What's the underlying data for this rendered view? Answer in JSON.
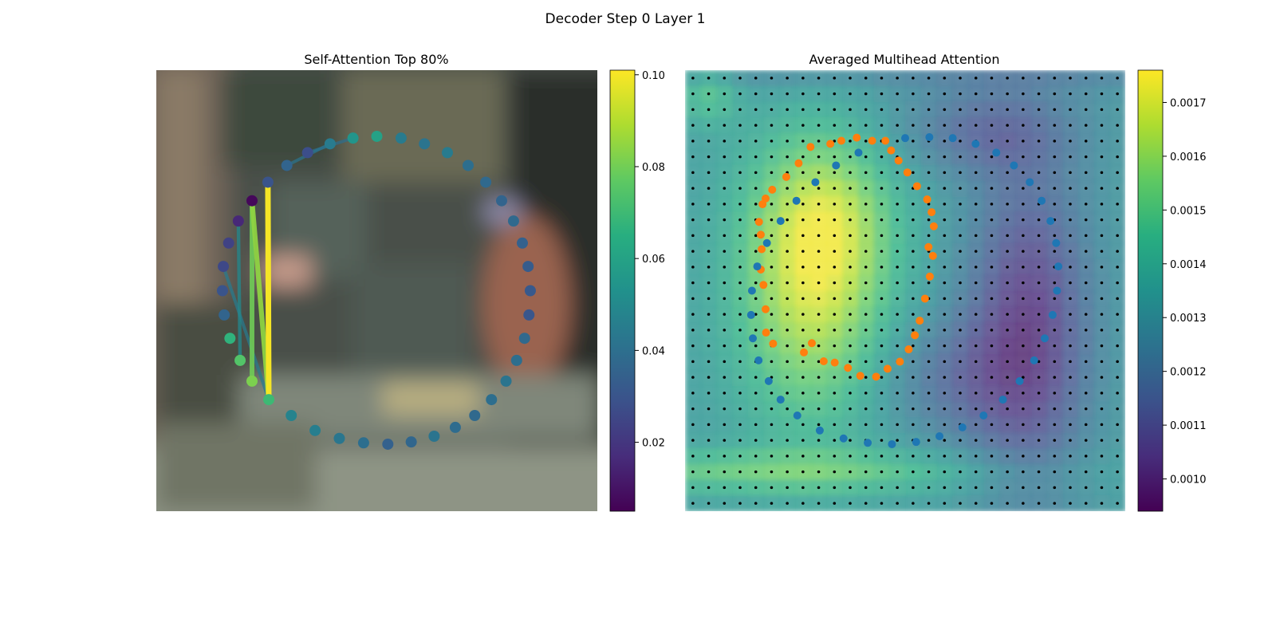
{
  "figure": {
    "suptitle": "Decoder Step 0 Layer 1"
  },
  "chart_data": [
    {
      "type": "scatter",
      "title": "Self-Attention Top 80%",
      "background": "blurred street-scene photograph",
      "xlim": [
        0,
        1
      ],
      "ylim": [
        0,
        1
      ],
      "points": {
        "note_units": "image-normalized coordinates (0 = left/top, 1 = right/bottom)",
        "x": [
          0.5,
          0.555,
          0.608,
          0.66,
          0.707,
          0.747,
          0.783,
          0.81,
          0.83,
          0.843,
          0.848,
          0.845,
          0.835,
          0.817,
          0.793,
          0.76,
          0.722,
          0.678,
          0.63,
          0.578,
          0.525,
          0.47,
          0.415,
          0.36,
          0.306,
          0.255,
          0.217,
          0.19,
          0.167,
          0.154,
          0.15,
          0.152,
          0.164,
          0.186,
          0.217,
          0.253,
          0.296,
          0.343,
          0.394,
          0.446
        ],
        "y": [
          0.15,
          0.154,
          0.167,
          0.187,
          0.216,
          0.254,
          0.296,
          0.342,
          0.392,
          0.445,
          0.5,
          0.555,
          0.608,
          0.658,
          0.705,
          0.747,
          0.783,
          0.81,
          0.83,
          0.843,
          0.848,
          0.845,
          0.835,
          0.817,
          0.783,
          0.747,
          0.705,
          0.658,
          0.608,
          0.555,
          0.5,
          0.445,
          0.392,
          0.342,
          0.296,
          0.254,
          0.216,
          0.187,
          0.167,
          0.154
        ],
        "attention": [
          0.06,
          0.045,
          0.042,
          0.045,
          0.04,
          0.038,
          0.036,
          0.038,
          0.035,
          0.033,
          0.032,
          0.031,
          0.038,
          0.04,
          0.042,
          0.04,
          0.038,
          0.039,
          0.042,
          0.037,
          0.035,
          0.04,
          0.043,
          0.046,
          0.048,
          0.07,
          0.082,
          0.075,
          0.067,
          0.036,
          0.03,
          0.026,
          0.024,
          0.016,
          0.007,
          0.03,
          0.036,
          0.028,
          0.045,
          0.055
        ]
      },
      "edges": [
        {
          "from": 25,
          "to": 35,
          "weight": 0.1
        },
        {
          "from": 25,
          "to": 34,
          "weight": 0.085
        },
        {
          "from": 26,
          "to": 34,
          "weight": 0.08
        },
        {
          "from": 25,
          "to": 31,
          "weight": 0.045
        },
        {
          "from": 27,
          "to": 33,
          "weight": 0.05
        },
        {
          "from": 38,
          "to": 36,
          "weight": 0.042
        },
        {
          "from": 39,
          "to": 37,
          "weight": 0.04
        }
      ],
      "colorbar": {
        "min": 0.005,
        "max": 0.101,
        "ticks": [
          0.02,
          0.04,
          0.06,
          0.08,
          0.1
        ],
        "tick_labels": [
          "0.02",
          "0.04",
          "0.06",
          "0.08",
          "0.10"
        ],
        "cmap": "viridis"
      }
    },
    {
      "type": "heatmap",
      "title": "Averaged Multihead Attention",
      "xlim": [
        0,
        1
      ],
      "ylim": [
        0,
        1
      ],
      "grid_size": 28,
      "grid_dots_color": "#000000",
      "heat_blobs": [
        {
          "cx": 0.29,
          "cy": 0.48,
          "sx": 0.12,
          "sy": 0.22,
          "w": 0.85
        },
        {
          "cx": 0.33,
          "cy": 0.33,
          "sx": 0.1,
          "sy": 0.12,
          "w": 0.35
        },
        {
          "cx": 0.78,
          "cy": 0.58,
          "sx": 0.1,
          "sy": 0.26,
          "w": -0.75
        },
        {
          "cx": 0.68,
          "cy": 0.14,
          "sx": 0.14,
          "sy": 0.07,
          "w": -0.4
        },
        {
          "cx": 0.6,
          "cy": 0.7,
          "sx": 0.12,
          "sy": 0.1,
          "w": -0.35
        },
        {
          "cx": 0.2,
          "cy": 0.91,
          "sx": 0.38,
          "sy": 0.035,
          "w": 0.45
        },
        {
          "cx": 0.05,
          "cy": 0.05,
          "sx": 0.05,
          "sy": 0.05,
          "w": 0.4
        }
      ],
      "series": [
        {
          "name": "inner",
          "color": "#ff7f0e",
          "x": [
            0.33,
            0.355,
            0.39,
            0.425,
            0.455,
            0.468,
            0.485,
            0.505,
            0.527,
            0.55,
            0.56,
            0.565,
            0.553,
            0.563,
            0.556,
            0.545,
            0.533,
            0.522,
            0.508,
            0.488,
            0.46,
            0.434,
            0.398,
            0.37,
            0.34,
            0.315,
            0.288,
            0.27,
            0.2,
            0.184,
            0.183,
            0.178,
            0.172,
            0.174,
            0.172,
            0.168,
            0.176,
            0.183,
            0.198,
            0.23,
            0.258,
            0.285
          ],
          "y": [
            0.167,
            0.16,
            0.153,
            0.16,
            0.16,
            0.182,
            0.205,
            0.232,
            0.263,
            0.293,
            0.322,
            0.354,
            0.401,
            0.421,
            0.468,
            0.518,
            0.568,
            0.601,
            0.633,
            0.661,
            0.677,
            0.695,
            0.693,
            0.675,
            0.663,
            0.66,
            0.619,
            0.64,
            0.62,
            0.595,
            0.542,
            0.487,
            0.452,
            0.406,
            0.373,
            0.344,
            0.304,
            0.291,
            0.271,
            0.242,
            0.211,
            0.174
          ]
        },
        {
          "name": "outer",
          "color": "#1f77b4",
          "x": [
            0.5,
            0.555,
            0.608,
            0.66,
            0.707,
            0.747,
            0.783,
            0.81,
            0.83,
            0.843,
            0.848,
            0.845,
            0.835,
            0.817,
            0.793,
            0.76,
            0.722,
            0.678,
            0.63,
            0.578,
            0.525,
            0.47,
            0.415,
            0.36,
            0.306,
            0.255,
            0.217,
            0.19,
            0.167,
            0.154,
            0.15,
            0.152,
            0.164,
            0.186,
            0.217,
            0.253,
            0.296,
            0.343,
            0.394
          ],
          "y": [
            0.154,
            0.152,
            0.154,
            0.167,
            0.187,
            0.216,
            0.254,
            0.296,
            0.342,
            0.392,
            0.445,
            0.5,
            0.555,
            0.608,
            0.658,
            0.705,
            0.747,
            0.783,
            0.81,
            0.83,
            0.843,
            0.848,
            0.845,
            0.835,
            0.817,
            0.783,
            0.747,
            0.705,
            0.658,
            0.608,
            0.555,
            0.5,
            0.445,
            0.392,
            0.342,
            0.296,
            0.254,
            0.216,
            0.187
          ]
        }
      ],
      "colorbar": {
        "min": 0.00094,
        "max": 0.00176,
        "ticks": [
          0.001,
          0.0011,
          0.0012,
          0.0013,
          0.0014,
          0.0015,
          0.0016,
          0.0017
        ],
        "tick_labels": [
          "0.0010",
          "0.0011",
          "0.0012",
          "0.0013",
          "0.0014",
          "0.0015",
          "0.0016",
          "0.0017"
        ],
        "cmap": "viridis"
      }
    }
  ]
}
